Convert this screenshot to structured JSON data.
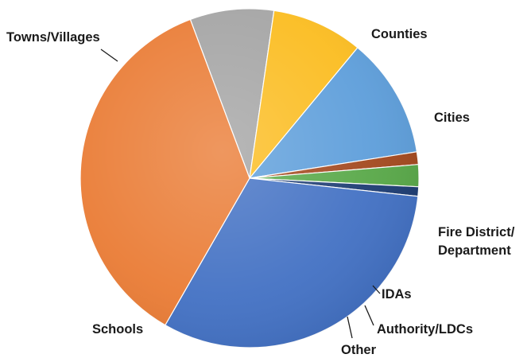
{
  "chart_data": {
    "type": "pie",
    "title": "",
    "start_angle_deg": -20.5,
    "slices": [
      {
        "label": "Counties",
        "value": 8.0,
        "color": "#a5a5a5"
      },
      {
        "label": "Cities",
        "value": 8.7,
        "color": "#fbbd22"
      },
      {
        "label": "Fire District/ Department",
        "label_lines": [
          "Fire District/",
          "Department"
        ],
        "value": 11.5,
        "color": "#5f9fdb"
      },
      {
        "label": "IDAs",
        "value": 1.2,
        "color": "#a44a20"
      },
      {
        "label": "Authority/LDCs",
        "value": 2.1,
        "color": "#5aa94a"
      },
      {
        "label": "Other",
        "value": 0.9,
        "color": "#1f3e74"
      },
      {
        "label": "Schools",
        "value": 31.6,
        "color": "#4472c4"
      },
      {
        "label": "Towns/Villages",
        "value": 36.0,
        "color": "#ea7d37"
      }
    ]
  }
}
